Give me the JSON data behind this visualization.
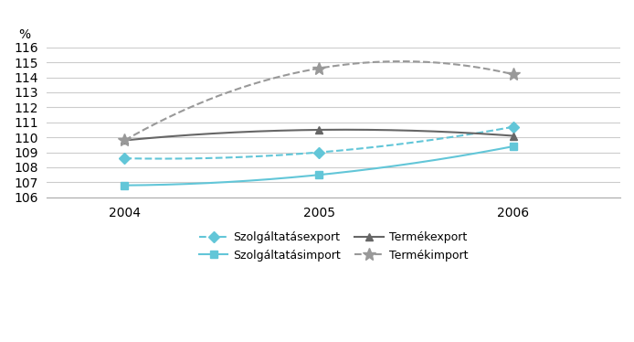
{
  "years": [
    2004,
    2005,
    2006
  ],
  "szolgaltatasexport": [
    108.6,
    109.0,
    110.7
  ],
  "szolgaltatasimport": [
    106.8,
    107.5,
    109.4
  ],
  "termekexport": [
    109.8,
    110.5,
    110.1
  ],
  "termekimport": [
    109.8,
    114.6,
    114.2
  ],
  "ylim": [
    106,
    116
  ],
  "yticks": [
    106,
    107,
    108,
    109,
    110,
    111,
    112,
    113,
    114,
    115,
    116
  ],
  "ylabel": "%",
  "color_export_svc": "#62C6D8",
  "color_import_svc": "#62C6D8",
  "color_export_goods": "#666666",
  "color_import_goods": "#999999",
  "legend_labels": [
    "Szolgáltatásexport",
    "Szolgáltatásimport",
    "Termékexport",
    "Termékimport"
  ]
}
